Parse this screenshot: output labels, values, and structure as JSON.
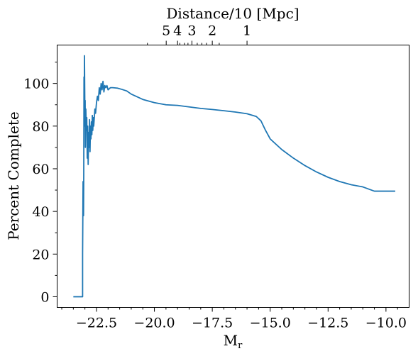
{
  "chart_data": {
    "type": "line",
    "xlabel": "M",
    "xlabel_sub": "r",
    "ylabel": "Percent Complete",
    "top_axis_label": "Distance/10 [Mpc]",
    "xlim": [
      -24.2,
      -9.0
    ],
    "ylim": [
      -5,
      118
    ],
    "x_inverted": false,
    "grid": false,
    "x_ticks": [
      {
        "value": -22.5,
        "label": "−22.5"
      },
      {
        "value": -20.0,
        "label": "−20.0"
      },
      {
        "value": -17.5,
        "label": "−17.5"
      },
      {
        "value": -15.0,
        "label": "−15.0"
      },
      {
        "value": -12.5,
        "label": "−12.5"
      },
      {
        "value": -10.0,
        "label": "−10.0"
      }
    ],
    "y_ticks": [
      {
        "value": 0,
        "label": "0"
      },
      {
        "value": 20,
        "label": "20"
      },
      {
        "value": 40,
        "label": "40"
      },
      {
        "value": 60,
        "label": "60"
      },
      {
        "value": 80,
        "label": "80"
      },
      {
        "value": 100,
        "label": "100"
      }
    ],
    "top_ticks": [
      {
        "value": -19.49,
        "label": "5"
      },
      {
        "value": -19.0,
        "label": "4"
      },
      {
        "value": -18.38,
        "label": "3"
      },
      {
        "value": -17.5,
        "label": "2"
      },
      {
        "value": -16.0,
        "label": "1"
      }
    ],
    "series": [
      {
        "color": "#1f77b4",
        "x": [
          -23.5,
          -23.1,
          -23.1,
          -23.08,
          -23.06,
          -23.05,
          -23.04,
          -23.03,
          -23.02,
          -23.0,
          -22.99,
          -22.98,
          -22.96,
          -22.94,
          -22.92,
          -22.9,
          -22.88,
          -22.86,
          -22.84,
          -22.82,
          -22.8,
          -22.78,
          -22.76,
          -22.74,
          -22.72,
          -22.7,
          -22.68,
          -22.66,
          -22.64,
          -22.62,
          -22.6,
          -22.57,
          -22.54,
          -22.5,
          -22.46,
          -22.42,
          -22.38,
          -22.34,
          -22.3,
          -22.26,
          -22.22,
          -22.18,
          -22.14,
          -22.1,
          -22.05,
          -22.0,
          -21.9,
          -21.8,
          -21.6,
          -21.4,
          -21.2,
          -21.0,
          -20.8,
          -20.5,
          -20.0,
          -19.5,
          -19.0,
          -18.5,
          -18.0,
          -17.5,
          -17.0,
          -16.5,
          -16.0,
          -15.6,
          -15.4,
          -15.2,
          -15.0,
          -14.5,
          -14.0,
          -13.5,
          -13.0,
          -12.5,
          -12.0,
          -11.5,
          -11.0,
          -10.5,
          -10.0,
          -9.85,
          -9.6
        ],
        "y": [
          0,
          0,
          20,
          54,
          38,
          58,
          103,
          80,
          113,
          85,
          92,
          70,
          88,
          78,
          84,
          65,
          80,
          62,
          77,
          70,
          83,
          68,
          80,
          74,
          82,
          76,
          85,
          78,
          84,
          80,
          83,
          88,
          86,
          91,
          94,
          92,
          98,
          95,
          100,
          97,
          101,
          96,
          99,
          98,
          99,
          97,
          98,
          98,
          97.8,
          97.2,
          96.5,
          95,
          94,
          92.5,
          91,
          90,
          89.7,
          89,
          88.3,
          87.8,
          87.2,
          86.6,
          85.8,
          84.5,
          82.5,
          78,
          74,
          69,
          65,
          61.5,
          58.5,
          56,
          54,
          52.5,
          51.5,
          49.5,
          49.5,
          49.5,
          49.5
        ]
      }
    ]
  }
}
